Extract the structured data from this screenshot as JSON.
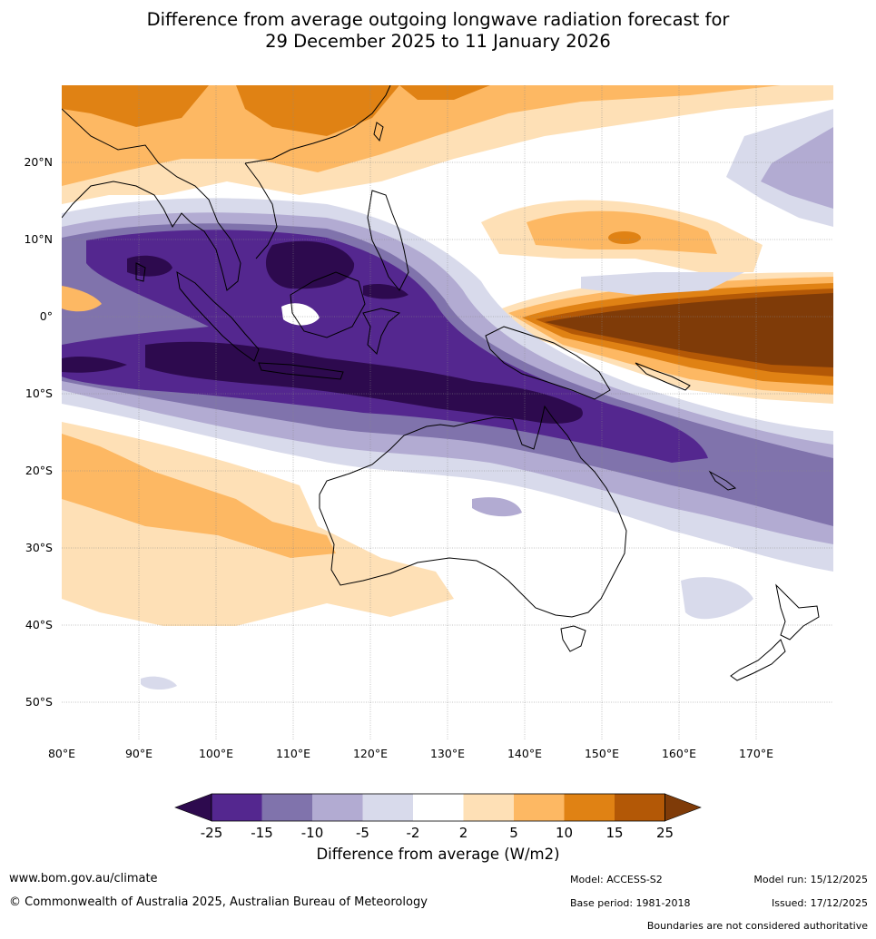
{
  "title": {
    "line1": "Difference from average outgoing longwave radiation forecast for",
    "line2": "29 December 2025 to 11 January 2026"
  },
  "map": {
    "lat_labels": [
      "20°N",
      "10°N",
      "0°",
      "10°S",
      "20°S",
      "30°S",
      "40°S",
      "50°S"
    ],
    "lon_labels": [
      "80°E",
      "90°E",
      "100°E",
      "110°E",
      "120°E",
      "130°E",
      "140°E",
      "150°E",
      "160°E",
      "170°E"
    ],
    "lon_range": [
      80,
      180
    ],
    "lat_range": [
      -55,
      30
    ]
  },
  "colorbar": {
    "title": "Difference from average (W/m2)",
    "ticks": [
      "-25",
      "-15",
      "-10",
      "-5",
      "-2",
      "2",
      "5",
      "10",
      "15",
      "25"
    ],
    "colors": [
      "#2d0a4e",
      "#54278f",
      "#8073ac",
      "#b2abd2",
      "#d8daeb",
      "#ffffff",
      "#fee0b6",
      "#fdb863",
      "#e08214",
      "#b35806",
      "#7f3b08"
    ]
  },
  "footer": {
    "website": "www.bom.gov.au/climate",
    "copyright": "© Commonwealth of Australia 2025, Australian Bureau of Meteorology",
    "model": "Model: ACCESS-S2",
    "base_period": "Base period: 1981-2018",
    "model_run": "Model run: 15/12/2025",
    "issued": "Issued: 17/12/2025",
    "disclaimer": "Boundaries are not considered authoritative"
  }
}
